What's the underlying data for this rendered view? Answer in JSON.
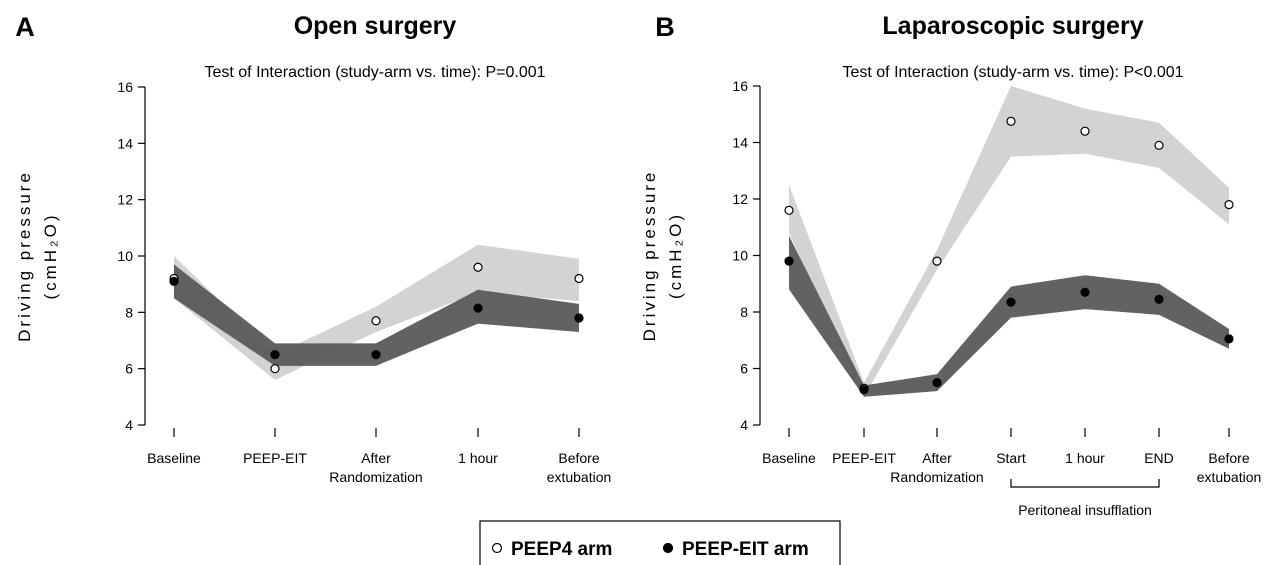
{
  "chart_data": [
    {
      "type": "line",
      "panel_label": "A",
      "title": "Open surgery",
      "subtitle": "Test of Interaction (study-arm vs. time): P=0.001",
      "y_label": [
        "Driving pressure",
        "(cmH₂O)"
      ],
      "categories": [
        "Baseline",
        "PEEP-EIT",
        "After\nRandomization",
        "1 hour",
        "Before\nextubation"
      ],
      "ylim": [
        4,
        16
      ],
      "yticks": [
        4,
        6,
        8,
        10,
        12,
        14,
        16
      ],
      "series": [
        {
          "name": "PEEP4 arm",
          "color": "#d3d3d3",
          "marker": "open",
          "values": [
            9.2,
            6.0,
            7.7,
            9.6,
            9.2
          ],
          "lower": [
            8.5,
            5.6,
            7.3,
            8.7,
            8.4
          ],
          "upper": [
            10.0,
            6.5,
            8.2,
            10.4,
            9.9
          ]
        },
        {
          "name": "PEEP-EIT arm",
          "color": "#5a5a5a",
          "marker": "filled",
          "values": [
            9.1,
            6.5,
            6.5,
            8.15,
            7.8
          ],
          "lower": [
            8.5,
            6.1,
            6.1,
            7.6,
            7.3
          ],
          "upper": [
            9.7,
            6.9,
            6.9,
            8.8,
            8.3
          ]
        }
      ]
    },
    {
      "type": "line",
      "panel_label": "B",
      "title": "Laparoscopic surgery",
      "subtitle": "Test of Interaction (study-arm vs. time): P<0.001",
      "y_label": [
        "Driving pressure",
        "(cmH₂O)"
      ],
      "categories": [
        "Baseline",
        "PEEP-EIT",
        "After\nRandomization",
        "Start",
        "1 hour",
        "END",
        "Before\nextubation"
      ],
      "annotation": "Peritoneal insufflation",
      "ylim": [
        4,
        16
      ],
      "yticks": [
        4,
        6,
        8,
        10,
        12,
        14,
        16
      ],
      "series": [
        {
          "name": "PEEP4 arm",
          "color": "#d3d3d3",
          "marker": "open",
          "values": [
            11.6,
            5.3,
            9.8,
            14.75,
            14.4,
            13.9,
            11.8
          ],
          "lower": [
            10.8,
            5.0,
            9.5,
            13.5,
            13.6,
            13.1,
            11.1
          ],
          "upper": [
            12.5,
            5.5,
            10.2,
            16.0,
            15.2,
            14.7,
            12.4
          ]
        },
        {
          "name": "PEEP-EIT arm",
          "color": "#5a5a5a",
          "marker": "filled",
          "values": [
            9.8,
            5.25,
            5.5,
            8.35,
            8.7,
            8.45,
            7.05
          ],
          "lower": [
            8.8,
            5.0,
            5.2,
            7.8,
            8.1,
            7.9,
            6.7
          ],
          "upper": [
            10.7,
            5.4,
            5.8,
            8.9,
            9.3,
            9.0,
            7.4
          ]
        }
      ]
    }
  ]
}
